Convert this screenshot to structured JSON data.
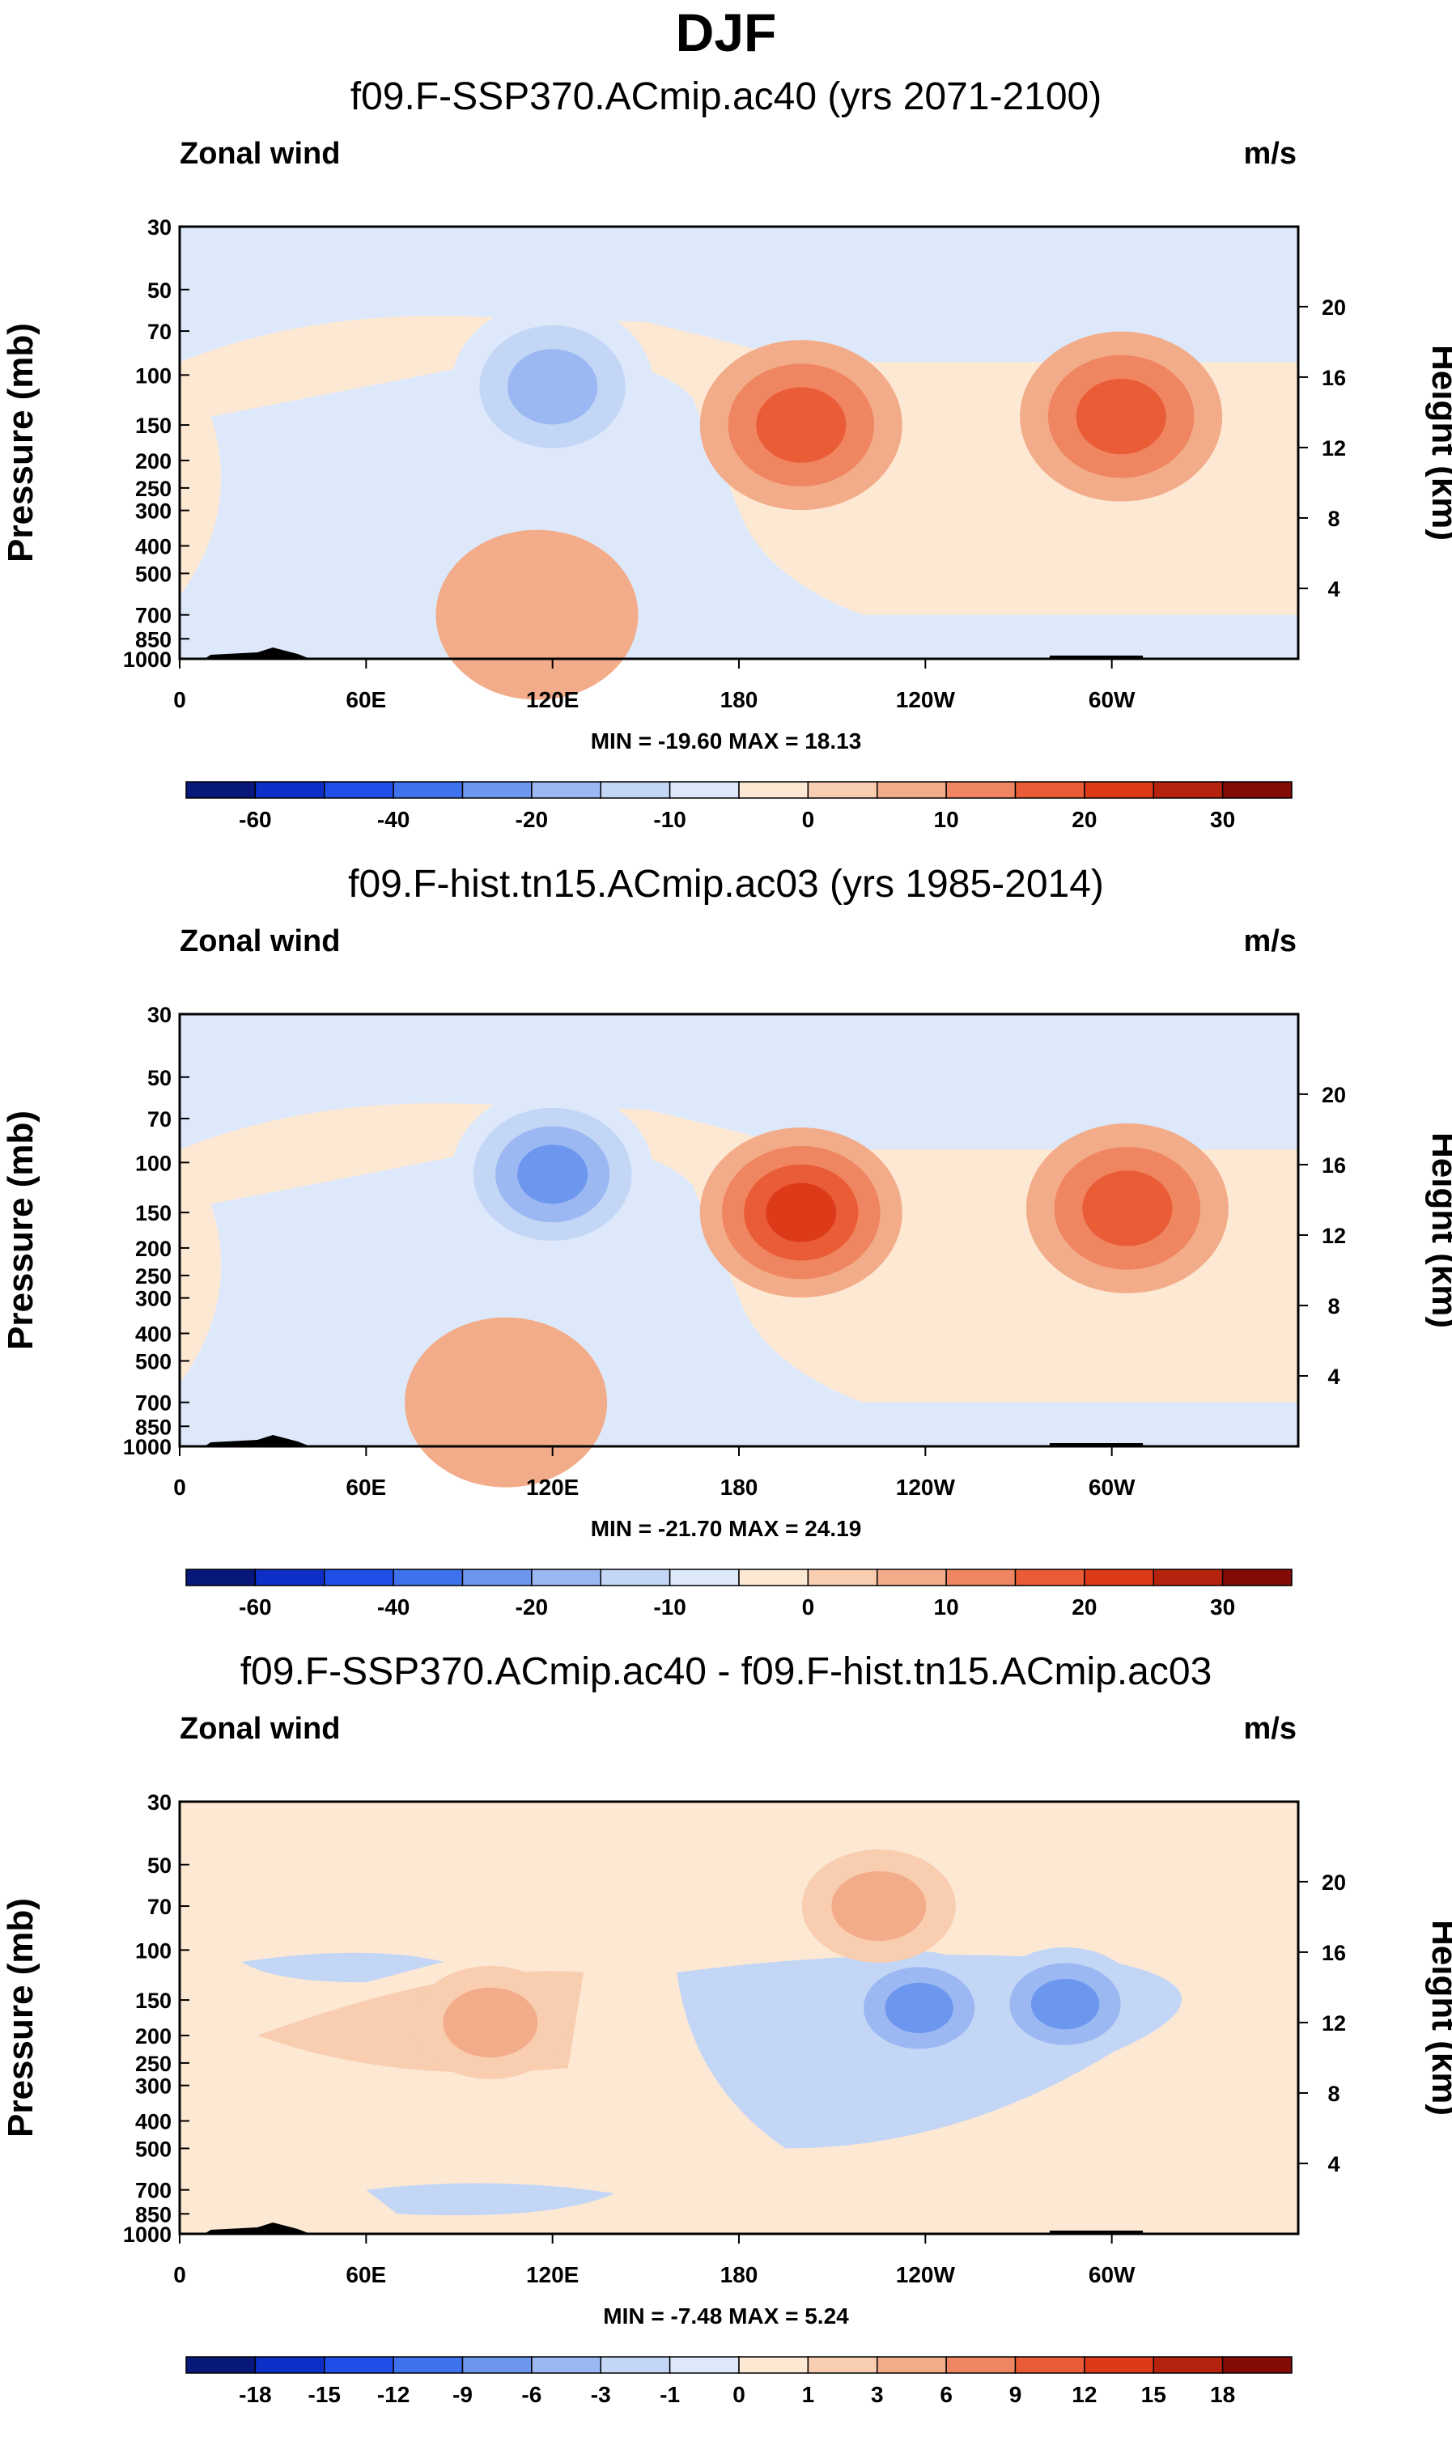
{
  "title": "DJF",
  "chart_data": [
    {
      "type": "heatmap",
      "title": "f09.F-SSP370.ACmip.ac40 (yrs 2071-2100)",
      "left_label": "Zonal wind",
      "right_label": "m/s",
      "ylabel": "Pressure (mb)",
      "y2label": "Height (km)",
      "y_ticks": [
        "30",
        "50",
        "70",
        "100",
        "150",
        "200",
        "250",
        "300",
        "400",
        "500",
        "700",
        "850",
        "1000"
      ],
      "y2_ticks": [
        "20",
        "16",
        "12",
        "8",
        "4"
      ],
      "x_ticks": [
        "0",
        "60E",
        "120E",
        "180",
        "120W",
        "60W"
      ],
      "xlim": [
        0,
        360
      ],
      "ylim": [
        1000,
        30
      ],
      "minmax": "MIN = -19.60  MAX =  18.13",
      "colorbar_labels": [
        "-60",
        "-40",
        "-20",
        "-10",
        "0",
        "10",
        "20",
        "30"
      ],
      "colorbar_colors": [
        "#08187a",
        "#0d2fc8",
        "#1f4fe6",
        "#3f72ee",
        "#6d97ef",
        "#9bb8f2",
        "#c3d6f6",
        "#dde9fb",
        "#fde8d4",
        "#f9cdb0",
        "#f3ac89",
        "#ef8661",
        "#ea5c36",
        "#dd3a1a",
        "#b5230e",
        "#820b05"
      ],
      "features": [
        {
          "lon": 120,
          "p": 110,
          "value": -19.6
        },
        {
          "lon": 200,
          "p": 150,
          "value": 18.1
        },
        {
          "lon": 303,
          "p": 140,
          "value": 16.0
        },
        {
          "lon": 115,
          "p": 700,
          "value": 5.0
        }
      ]
    },
    {
      "type": "heatmap",
      "title": "f09.F-hist.tn15.ACmip.ac03 (yrs 1985-2014)",
      "left_label": "Zonal wind",
      "right_label": "m/s",
      "ylabel": "Pressure (mb)",
      "y2label": "Height (km)",
      "y_ticks": [
        "30",
        "50",
        "70",
        "100",
        "150",
        "200",
        "250",
        "300",
        "400",
        "500",
        "700",
        "850",
        "1000"
      ],
      "y2_ticks": [
        "20",
        "16",
        "12",
        "8",
        "4"
      ],
      "x_ticks": [
        "0",
        "60E",
        "120E",
        "180",
        "120W",
        "60W"
      ],
      "xlim": [
        0,
        360
      ],
      "ylim": [
        1000,
        30
      ],
      "minmax": "MIN = -21.70  MAX =  24.19",
      "colorbar_labels": [
        "-60",
        "-40",
        "-20",
        "-10",
        "0",
        "10",
        "20",
        "30"
      ],
      "colorbar_colors": [
        "#08187a",
        "#0d2fc8",
        "#1f4fe6",
        "#3f72ee",
        "#6d97ef",
        "#9bb8f2",
        "#c3d6f6",
        "#dde9fb",
        "#fde8d4",
        "#f9cdb0",
        "#f3ac89",
        "#ef8661",
        "#ea5c36",
        "#dd3a1a",
        "#b5230e",
        "#820b05"
      ],
      "features": [
        {
          "lon": 120,
          "p": 110,
          "value": -21.7
        },
        {
          "lon": 200,
          "p": 150,
          "value": 24.2
        },
        {
          "lon": 305,
          "p": 145,
          "value": 18.0
        },
        {
          "lon": 105,
          "p": 700,
          "value": 6.0
        }
      ]
    },
    {
      "type": "heatmap",
      "title": "f09.F-SSP370.ACmip.ac40 - f09.F-hist.tn15.ACmip.ac03",
      "left_label": "Zonal wind",
      "right_label": "m/s",
      "ylabel": "Pressure (mb)",
      "y2label": "Height (km)",
      "y_ticks": [
        "30",
        "50",
        "70",
        "100",
        "150",
        "200",
        "250",
        "300",
        "400",
        "500",
        "700",
        "850",
        "1000"
      ],
      "y2_ticks": [
        "20",
        "16",
        "12",
        "8",
        "4"
      ],
      "x_ticks": [
        "0",
        "60E",
        "120E",
        "180",
        "120W",
        "60W"
      ],
      "xlim": [
        0,
        360
      ],
      "ylim": [
        1000,
        30
      ],
      "minmax": "MIN = -7.48  MAX =  5.24",
      "colorbar_labels": [
        "-18",
        "-15",
        "-12",
        "-9",
        "-6",
        "-3",
        "-1",
        "0",
        "1",
        "3",
        "6",
        "9",
        "12",
        "15",
        "18"
      ],
      "colorbar_colors": [
        "#08187a",
        "#0d2fc8",
        "#1f4fe6",
        "#3f72ee",
        "#6d97ef",
        "#9bb8f2",
        "#c3d6f6",
        "#dde9fb",
        "#fde8d4",
        "#f9cdb0",
        "#f3ac89",
        "#ef8661",
        "#ea5c36",
        "#dd3a1a",
        "#b5230e",
        "#820b05"
      ],
      "features": [
        {
          "lon": 238,
          "p": 160,
          "value": -7.5
        },
        {
          "lon": 285,
          "p": 155,
          "value": -6.0
        },
        {
          "lon": 100,
          "p": 180,
          "value": 4.5
        },
        {
          "lon": 225,
          "p": 70,
          "value": 3.0
        }
      ]
    }
  ]
}
